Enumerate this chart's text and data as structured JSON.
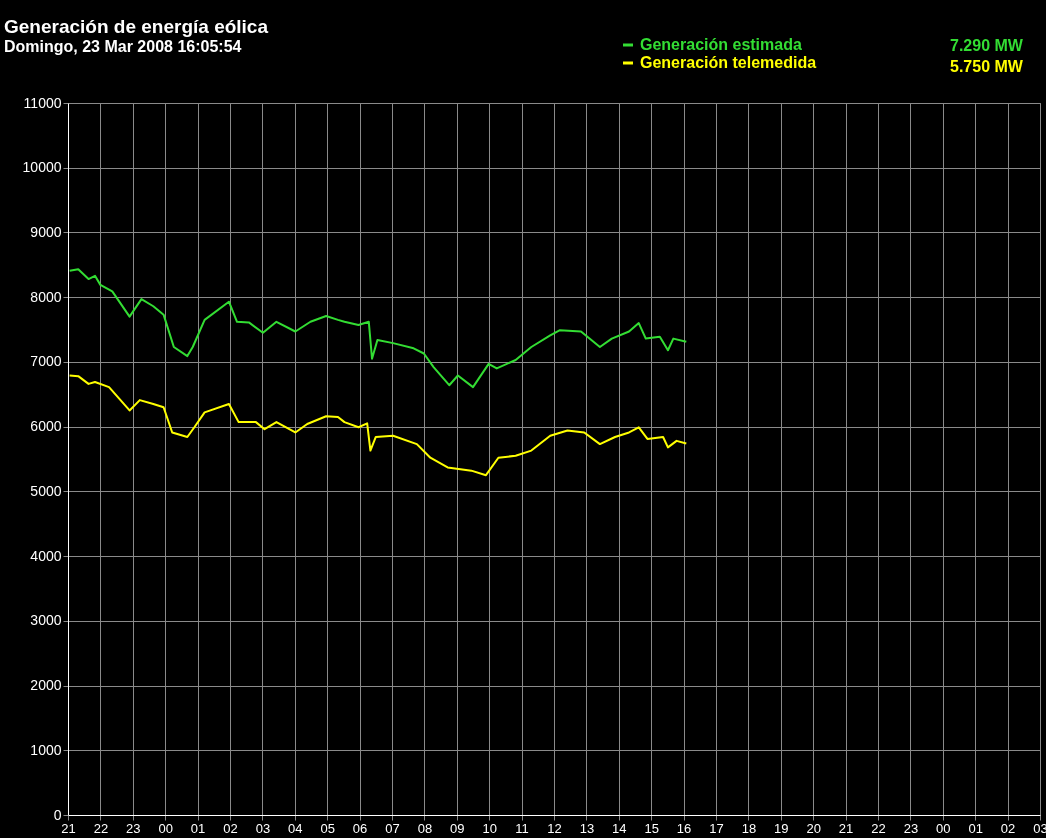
{
  "chart_data": {
    "type": "line",
    "title": "Generación de energía eólica",
    "subtitle": "Domingo, 23 Mar 2008 16:05:54",
    "annotations": [
      "7.290  MW",
      "5.750  MW"
    ],
    "series": [
      {
        "name": "Generación estimada",
        "color": "#33dd33",
        "x": [
          "2008-03-22T21:03",
          "2008-03-22T21:19",
          "2008-03-22T21:38",
          "2008-03-22T21:50",
          "2008-03-22T22:00",
          "2008-03-22T22:22",
          "2008-03-22T22:54",
          "2008-03-22T23:16",
          "2008-03-22T23:38",
          "2008-03-22T23:57",
          "2008-03-23T00:16",
          "2008-03-23T00:41",
          "2008-03-23T00:51",
          "2008-03-23T01:13",
          "2008-03-23T01:58",
          "2008-03-23T02:13",
          "2008-03-23T02:35",
          "2008-03-23T03:01",
          "2008-03-23T03:26",
          "2008-03-23T04:01",
          "2008-03-23T04:29",
          "2008-03-23T04:58",
          "2008-03-23T05:20",
          "2008-03-23T05:32",
          "2008-03-23T05:58",
          "2008-03-23T06:17",
          "2008-03-23T06:23",
          "2008-03-23T06:33",
          "2008-03-23T07:02",
          "2008-03-23T07:40",
          "2008-03-23T07:59",
          "2008-03-23T08:17",
          "2008-03-23T08:46",
          "2008-03-23T09:02",
          "2008-03-23T09:30",
          "2008-03-23T09:59",
          "2008-03-23T10:14",
          "2008-03-23T10:49",
          "2008-03-23T11:18",
          "2008-03-23T11:53",
          "2008-03-23T12:11",
          "2008-03-23T12:50",
          "2008-03-23T13:25",
          "2008-03-23T13:47",
          "2008-03-23T14:19",
          "2008-03-23T14:37",
          "2008-03-23T14:50",
          "2008-03-23T15:16",
          "2008-03-23T15:31",
          "2008-03-23T15:41",
          "2008-03-23T16:05"
        ],
        "values": [
          8410,
          8430,
          8280,
          8330,
          8190,
          8090,
          7700,
          7970,
          7860,
          7730,
          7230,
          7090,
          7230,
          7650,
          7930,
          7620,
          7610,
          7450,
          7620,
          7470,
          7620,
          7710,
          7650,
          7620,
          7570,
          7620,
          7050,
          7340,
          7290,
          7210,
          7130,
          6920,
          6640,
          6790,
          6610,
          6970,
          6900,
          7030,
          7230,
          7410,
          7490,
          7470,
          7230,
          7360,
          7470,
          7600,
          7360,
          7390,
          7180,
          7360,
          7310
        ]
      },
      {
        "name": "Generación telemedida",
        "color": "#ffff00",
        "x": [
          "2008-03-22T21:03",
          "2008-03-22T21:19",
          "2008-03-22T21:38",
          "2008-03-22T21:50",
          "2008-03-22T22:16",
          "2008-03-22T22:54",
          "2008-03-22T23:13",
          "2008-03-22T23:38",
          "2008-03-22T23:57",
          "2008-03-23T00:13",
          "2008-03-23T00:41",
          "2008-03-23T00:54",
          "2008-03-23T01:13",
          "2008-03-23T01:58",
          "2008-03-23T02:16",
          "2008-03-23T02:48",
          "2008-03-23T03:04",
          "2008-03-23T03:26",
          "2008-03-23T04:01",
          "2008-03-23T04:23",
          "2008-03-23T04:58",
          "2008-03-23T05:20",
          "2008-03-23T05:32",
          "2008-03-23T05:58",
          "2008-03-23T06:14",
          "2008-03-23T06:20",
          "2008-03-23T06:30",
          "2008-03-23T07:02",
          "2008-03-23T07:46",
          "2008-03-23T08:11",
          "2008-03-23T08:43",
          "2008-03-23T09:27",
          "2008-03-23T09:54",
          "2008-03-23T10:17",
          "2008-03-23T10:49",
          "2008-03-23T11:18",
          "2008-03-23T11:53",
          "2008-03-23T12:25",
          "2008-03-23T12:56",
          "2008-03-23T13:25",
          "2008-03-23T13:53",
          "2008-03-23T14:19",
          "2008-03-23T14:37",
          "2008-03-23T14:53",
          "2008-03-23T15:22",
          "2008-03-23T15:31",
          "2008-03-23T15:47",
          "2008-03-23T16:05"
        ],
        "values": [
          6790,
          6780,
          6660,
          6690,
          6610,
          6250,
          6410,
          6350,
          6300,
          5910,
          5840,
          5990,
          6220,
          6350,
          6070,
          6070,
          5960,
          6070,
          5910,
          6040,
          6160,
          6150,
          6070,
          5990,
          6050,
          5630,
          5840,
          5860,
          5730,
          5520,
          5370,
          5320,
          5250,
          5520,
          5550,
          5630,
          5860,
          5940,
          5910,
          5730,
          5840,
          5910,
          5990,
          5810,
          5840,
          5680,
          5780,
          5740
        ]
      }
    ],
    "xlim": [
      "2008-03-22T21:00",
      "2008-03-24T03:00"
    ],
    "xticks": [
      {
        "value": "2008-03-22T21:00",
        "label": "21"
      },
      {
        "value": "2008-03-22T22:00",
        "label": "22"
      },
      {
        "value": "2008-03-22T23:00",
        "label": "23"
      },
      {
        "value": "2008-03-23T00:00",
        "label": "00"
      },
      {
        "value": "2008-03-23T01:00",
        "label": "01"
      },
      {
        "value": "2008-03-23T02:00",
        "label": "02"
      },
      {
        "value": "2008-03-23T03:00",
        "label": "03"
      },
      {
        "value": "2008-03-23T04:00",
        "label": "04"
      },
      {
        "value": "2008-03-23T05:00",
        "label": "05"
      },
      {
        "value": "2008-03-23T06:00",
        "label": "06"
      },
      {
        "value": "2008-03-23T07:00",
        "label": "07"
      },
      {
        "value": "2008-03-23T08:00",
        "label": "08"
      },
      {
        "value": "2008-03-23T09:00",
        "label": "09"
      },
      {
        "value": "2008-03-23T10:00",
        "label": "10"
      },
      {
        "value": "2008-03-23T11:00",
        "label": "11"
      },
      {
        "value": "2008-03-23T12:00",
        "label": "12"
      },
      {
        "value": "2008-03-23T13:00",
        "label": "13"
      },
      {
        "value": "2008-03-23T14:00",
        "label": "14"
      },
      {
        "value": "2008-03-23T15:00",
        "label": "15"
      },
      {
        "value": "2008-03-23T16:00",
        "label": "16"
      },
      {
        "value": "2008-03-23T17:00",
        "label": "17"
      },
      {
        "value": "2008-03-23T18:00",
        "label": "18"
      },
      {
        "value": "2008-03-23T19:00",
        "label": "19"
      },
      {
        "value": "2008-03-23T20:00",
        "label": "20"
      },
      {
        "value": "2008-03-23T21:00",
        "label": "21"
      },
      {
        "value": "2008-03-23T22:00",
        "label": "22"
      },
      {
        "value": "2008-03-23T23:00",
        "label": "23"
      },
      {
        "value": "2008-03-24T00:00",
        "label": "00"
      },
      {
        "value": "2008-03-24T01:00",
        "label": "01"
      },
      {
        "value": "2008-03-24T02:00",
        "label": "02"
      },
      {
        "value": "2008-03-24T03:00",
        "label": "03"
      }
    ],
    "ylim": [
      0,
      11000
    ],
    "yticks": [
      0,
      1000,
      2000,
      3000,
      4000,
      5000,
      6000,
      7000,
      8000,
      9000,
      10000,
      11000
    ],
    "grid": true,
    "legend": "top right"
  }
}
